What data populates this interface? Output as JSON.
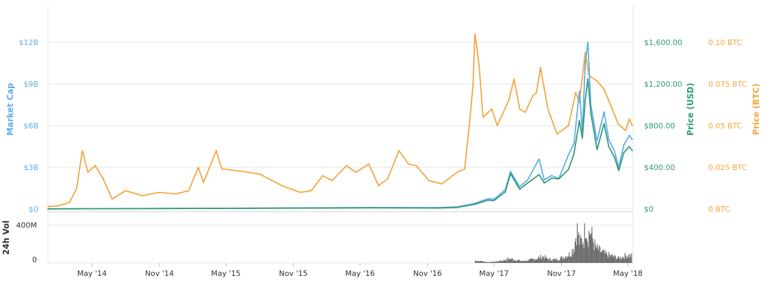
{
  "chart_data": {
    "type": "line",
    "colors": {
      "market_cap": "#5fadea",
      "price_usd": "#2f9a78",
      "price_btc": "#f5a43c",
      "volume": "#6e6e6e",
      "grid": "#e6e6e6"
    },
    "axes": {
      "market_cap": {
        "label": "Market Cap",
        "ticks": [
          {
            "value": 0,
            "label": "$0"
          },
          {
            "value": 3,
            "label": "$3B"
          },
          {
            "value": 6,
            "label": "$6B"
          },
          {
            "value": 9,
            "label": "$9B"
          },
          {
            "value": 12,
            "label": "$12B"
          }
        ],
        "range": [
          0,
          12
        ]
      },
      "price_usd": {
        "label": "Price (USD)",
        "ticks": [
          {
            "value": 0,
            "label": "$0"
          },
          {
            "value": 400,
            "label": "$400.00"
          },
          {
            "value": 800,
            "label": "$800.00"
          },
          {
            "value": 1200,
            "label": "$1,200.00"
          },
          {
            "value": 1600,
            "label": "$1,600.00"
          }
        ],
        "range": [
          0,
          1600
        ]
      },
      "price_btc": {
        "label": "Price (BTC)",
        "ticks": [
          {
            "value": 0,
            "label": "0 BTC"
          },
          {
            "value": 0.025,
            "label": "0.025 BTC"
          },
          {
            "value": 0.05,
            "label": "0.05 BTC"
          },
          {
            "value": 0.075,
            "label": "0.075 BTC"
          },
          {
            "value": 0.1,
            "label": "0.10 BTC"
          }
        ],
        "range": [
          0,
          0.1
        ]
      },
      "volume": {
        "label": "24h Vol",
        "ticks": [
          {
            "value": 0,
            "label": "0"
          },
          {
            "value": 400,
            "label": "400M"
          }
        ],
        "range": [
          0,
          520
        ]
      }
    },
    "x": {
      "range": [
        "2014-01-01",
        "2018-05-15"
      ],
      "ticks": [
        {
          "date": "2014-05-01",
          "label": "May '14"
        },
        {
          "date": "2014-11-01",
          "label": "Nov '14"
        },
        {
          "date": "2015-05-01",
          "label": "May '15"
        },
        {
          "date": "2015-11-01",
          "label": "Nov '15"
        },
        {
          "date": "2016-05-01",
          "label": "May '16"
        },
        {
          "date": "2016-11-01",
          "label": "Nov '16"
        },
        {
          "date": "2017-05-01",
          "label": "May '17"
        },
        {
          "date": "2017-11-01",
          "label": "Nov '17"
        },
        {
          "date": "2018-05-01",
          "label": "May '18"
        }
      ]
    },
    "series": [
      {
        "key": "price_btc",
        "axis": "price_btc",
        "points": [
          [
            "2014-01-01",
            0.0015
          ],
          [
            "2014-02-01",
            0.002
          ],
          [
            "2014-03-01",
            0.004
          ],
          [
            "2014-03-20",
            0.012
          ],
          [
            "2014-04-05",
            0.035
          ],
          [
            "2014-04-20",
            0.022
          ],
          [
            "2014-05-10",
            0.026
          ],
          [
            "2014-06-01",
            0.018
          ],
          [
            "2014-06-25",
            0.006
          ],
          [
            "2014-08-01",
            0.011
          ],
          [
            "2014-09-15",
            0.008
          ],
          [
            "2014-11-01",
            0.01
          ],
          [
            "2014-12-15",
            0.009
          ],
          [
            "2015-01-20",
            0.011
          ],
          [
            "2015-02-15",
            0.025
          ],
          [
            "2015-03-01",
            0.016
          ],
          [
            "2015-04-05",
            0.035
          ],
          [
            "2015-04-20",
            0.024
          ],
          [
            "2015-06-01",
            0.023
          ],
          [
            "2015-08-01",
            0.021
          ],
          [
            "2015-10-01",
            0.014
          ],
          [
            "2015-11-20",
            0.01
          ],
          [
            "2015-12-20",
            0.011
          ],
          [
            "2016-01-20",
            0.02
          ],
          [
            "2016-02-15",
            0.017
          ],
          [
            "2016-03-25",
            0.026
          ],
          [
            "2016-04-20",
            0.022
          ],
          [
            "2016-05-25",
            0.027
          ],
          [
            "2016-06-20",
            0.014
          ],
          [
            "2016-07-15",
            0.018
          ],
          [
            "2016-08-15",
            0.035
          ],
          [
            "2016-09-10",
            0.027
          ],
          [
            "2016-10-01",
            0.026
          ],
          [
            "2016-11-05",
            0.017
          ],
          [
            "2016-12-10",
            0.015
          ],
          [
            "2017-01-20",
            0.022
          ],
          [
            "2017-02-10",
            0.024
          ],
          [
            "2017-02-25",
            0.055
          ],
          [
            "2017-03-05",
            0.075
          ],
          [
            "2017-03-10",
            0.105
          ],
          [
            "2017-03-15",
            0.098
          ],
          [
            "2017-03-22",
            0.085
          ],
          [
            "2017-04-01",
            0.055
          ],
          [
            "2017-04-25",
            0.06
          ],
          [
            "2017-05-10",
            0.05
          ],
          [
            "2017-06-10",
            0.065
          ],
          [
            "2017-06-25",
            0.078
          ],
          [
            "2017-07-10",
            0.06
          ],
          [
            "2017-07-25",
            0.058
          ],
          [
            "2017-08-15",
            0.068
          ],
          [
            "2017-08-25",
            0.07
          ],
          [
            "2017-09-05",
            0.085
          ],
          [
            "2017-09-25",
            0.06
          ],
          [
            "2017-10-20",
            0.045
          ],
          [
            "2017-11-20",
            0.05
          ],
          [
            "2017-12-10",
            0.07
          ],
          [
            "2017-12-20",
            0.064
          ],
          [
            "2018-01-05",
            0.094
          ],
          [
            "2018-01-15",
            0.08
          ],
          [
            "2018-02-05",
            0.077
          ],
          [
            "2018-02-25",
            0.072
          ],
          [
            "2018-03-10",
            0.065
          ],
          [
            "2018-04-05",
            0.051
          ],
          [
            "2018-04-25",
            0.047
          ],
          [
            "2018-05-05",
            0.054
          ],
          [
            "2018-05-13",
            0.05
          ]
        ]
      },
      {
        "key": "market_cap",
        "axis": "market_cap",
        "points": [
          [
            "2014-01-01",
            0.01
          ],
          [
            "2014-06-01",
            0.02
          ],
          [
            "2015-06-01",
            0.05
          ],
          [
            "2016-06-01",
            0.1
          ],
          [
            "2016-12-01",
            0.1
          ],
          [
            "2017-01-20",
            0.15
          ],
          [
            "2017-03-10",
            0.4
          ],
          [
            "2017-03-25",
            0.55
          ],
          [
            "2017-04-15",
            0.75
          ],
          [
            "2017-05-01",
            0.7
          ],
          [
            "2017-06-01",
            1.4
          ],
          [
            "2017-06-15",
            2.7
          ],
          [
            "2017-07-10",
            1.6
          ],
          [
            "2017-08-01",
            2.1
          ],
          [
            "2017-09-01",
            3.6
          ],
          [
            "2017-09-15",
            2.1
          ],
          [
            "2017-10-05",
            2.4
          ],
          [
            "2017-10-25",
            2.2
          ],
          [
            "2017-11-20",
            3.9
          ],
          [
            "2017-12-05",
            4.7
          ],
          [
            "2017-12-20",
            8.5
          ],
          [
            "2017-12-28",
            5.6
          ],
          [
            "2018-01-05",
            10.5
          ],
          [
            "2018-01-12",
            12.0
          ],
          [
            "2018-01-20",
            7.5
          ],
          [
            "2018-02-06",
            4.9
          ],
          [
            "2018-02-25",
            7.0
          ],
          [
            "2018-03-10",
            5.0
          ],
          [
            "2018-03-25",
            4.2
          ],
          [
            "2018-04-06",
            3.0
          ],
          [
            "2018-04-20",
            4.6
          ],
          [
            "2018-05-05",
            5.3
          ],
          [
            "2018-05-13",
            5.0
          ]
        ]
      },
      {
        "key": "price_usd",
        "axis": "price_usd",
        "points": [
          [
            "2014-01-01",
            1
          ],
          [
            "2014-06-01",
            3
          ],
          [
            "2015-06-01",
            7
          ],
          [
            "2016-06-01",
            12
          ],
          [
            "2016-12-01",
            10
          ],
          [
            "2017-01-20",
            15
          ],
          [
            "2017-03-10",
            45
          ],
          [
            "2017-03-25",
            62
          ],
          [
            "2017-04-15",
            85
          ],
          [
            "2017-05-01",
            80
          ],
          [
            "2017-06-01",
            165
          ],
          [
            "2017-06-15",
            340
          ],
          [
            "2017-07-10",
            190
          ],
          [
            "2017-08-01",
            250
          ],
          [
            "2017-09-01",
            330
          ],
          [
            "2017-09-15",
            250
          ],
          [
            "2017-10-05",
            295
          ],
          [
            "2017-10-25",
            290
          ],
          [
            "2017-11-20",
            380
          ],
          [
            "2017-12-05",
            530
          ],
          [
            "2017-12-20",
            850
          ],
          [
            "2017-12-28",
            680
          ],
          [
            "2018-01-05",
            1050
          ],
          [
            "2018-01-12",
            1250
          ],
          [
            "2018-01-20",
            920
          ],
          [
            "2018-02-06",
            570
          ],
          [
            "2018-02-25",
            820
          ],
          [
            "2018-03-10",
            600
          ],
          [
            "2018-03-25",
            500
          ],
          [
            "2018-04-06",
            370
          ],
          [
            "2018-04-20",
            540
          ],
          [
            "2018-05-05",
            600
          ],
          [
            "2018-05-13",
            560
          ]
        ]
      }
    ],
    "volume": {
      "axis": "volume",
      "points": [
        [
          "2017-03-10",
          25
        ],
        [
          "2017-03-25",
          20
        ],
        [
          "2017-04-10",
          10
        ],
        [
          "2017-05-01",
          12
        ],
        [
          "2017-05-25",
          28
        ],
        [
          "2017-06-12",
          45
        ],
        [
          "2017-06-25",
          35
        ],
        [
          "2017-07-15",
          20
        ],
        [
          "2017-08-05",
          30
        ],
        [
          "2017-08-28",
          50
        ],
        [
          "2017-09-10",
          70
        ],
        [
          "2017-09-25",
          40
        ],
        [
          "2017-10-15",
          35
        ],
        [
          "2017-11-05",
          60
        ],
        [
          "2017-11-25",
          100
        ],
        [
          "2017-12-05",
          180
        ],
        [
          "2017-12-12",
          360
        ],
        [
          "2017-12-20",
          210
        ],
        [
          "2018-01-01",
          260
        ],
        [
          "2018-01-05",
          470
        ],
        [
          "2018-01-10",
          270
        ],
        [
          "2018-01-17",
          340
        ],
        [
          "2018-02-01",
          160
        ],
        [
          "2018-02-15",
          120
        ],
        [
          "2018-03-01",
          90
        ],
        [
          "2018-03-20",
          70
        ],
        [
          "2018-04-05",
          50
        ],
        [
          "2018-04-25",
          80
        ],
        [
          "2018-05-10",
          75
        ]
      ]
    }
  }
}
